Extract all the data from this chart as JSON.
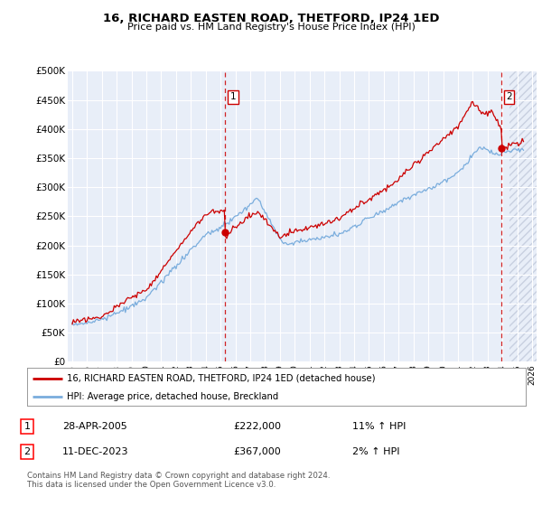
{
  "title": "16, RICHARD EASTEN ROAD, THETFORD, IP24 1ED",
  "subtitle": "Price paid vs. HM Land Registry's House Price Index (HPI)",
  "ylim": [
    0,
    500000
  ],
  "yticks": [
    0,
    50000,
    100000,
    150000,
    200000,
    250000,
    300000,
    350000,
    400000,
    450000,
    500000
  ],
  "ytick_labels": [
    "£0",
    "£50K",
    "£100K",
    "£150K",
    "£200K",
    "£250K",
    "£300K",
    "£350K",
    "£400K",
    "£450K",
    "£500K"
  ],
  "background_color": "#ffffff",
  "plot_bg_color": "#e8eef8",
  "grid_color": "#c8d0e0",
  "sale1": {
    "date": "28-APR-2005",
    "price": 222000,
    "hpi_pct": "11% ↑ HPI",
    "label": "1",
    "x": 2005.32
  },
  "sale2": {
    "date": "11-DEC-2023",
    "price": 367000,
    "hpi_pct": "2% ↑ HPI",
    "label": "2",
    "x": 2023.94
  },
  "legend_house": "16, RICHARD EASTEN ROAD, THETFORD, IP24 1ED (detached house)",
  "legend_hpi": "HPI: Average price, detached house, Breckland",
  "footnote": "Contains HM Land Registry data © Crown copyright and database right 2024.\nThis data is licensed under the Open Government Licence v3.0.",
  "house_color": "#cc0000",
  "hpi_color": "#7aaddd",
  "vline_color": "#cc0000",
  "marker_color": "#cc0000",
  "hatch_color": "#c8d0e0",
  "xlim_start": 1994.7,
  "xlim_end": 2026.3,
  "hatch_start": 2024.5
}
